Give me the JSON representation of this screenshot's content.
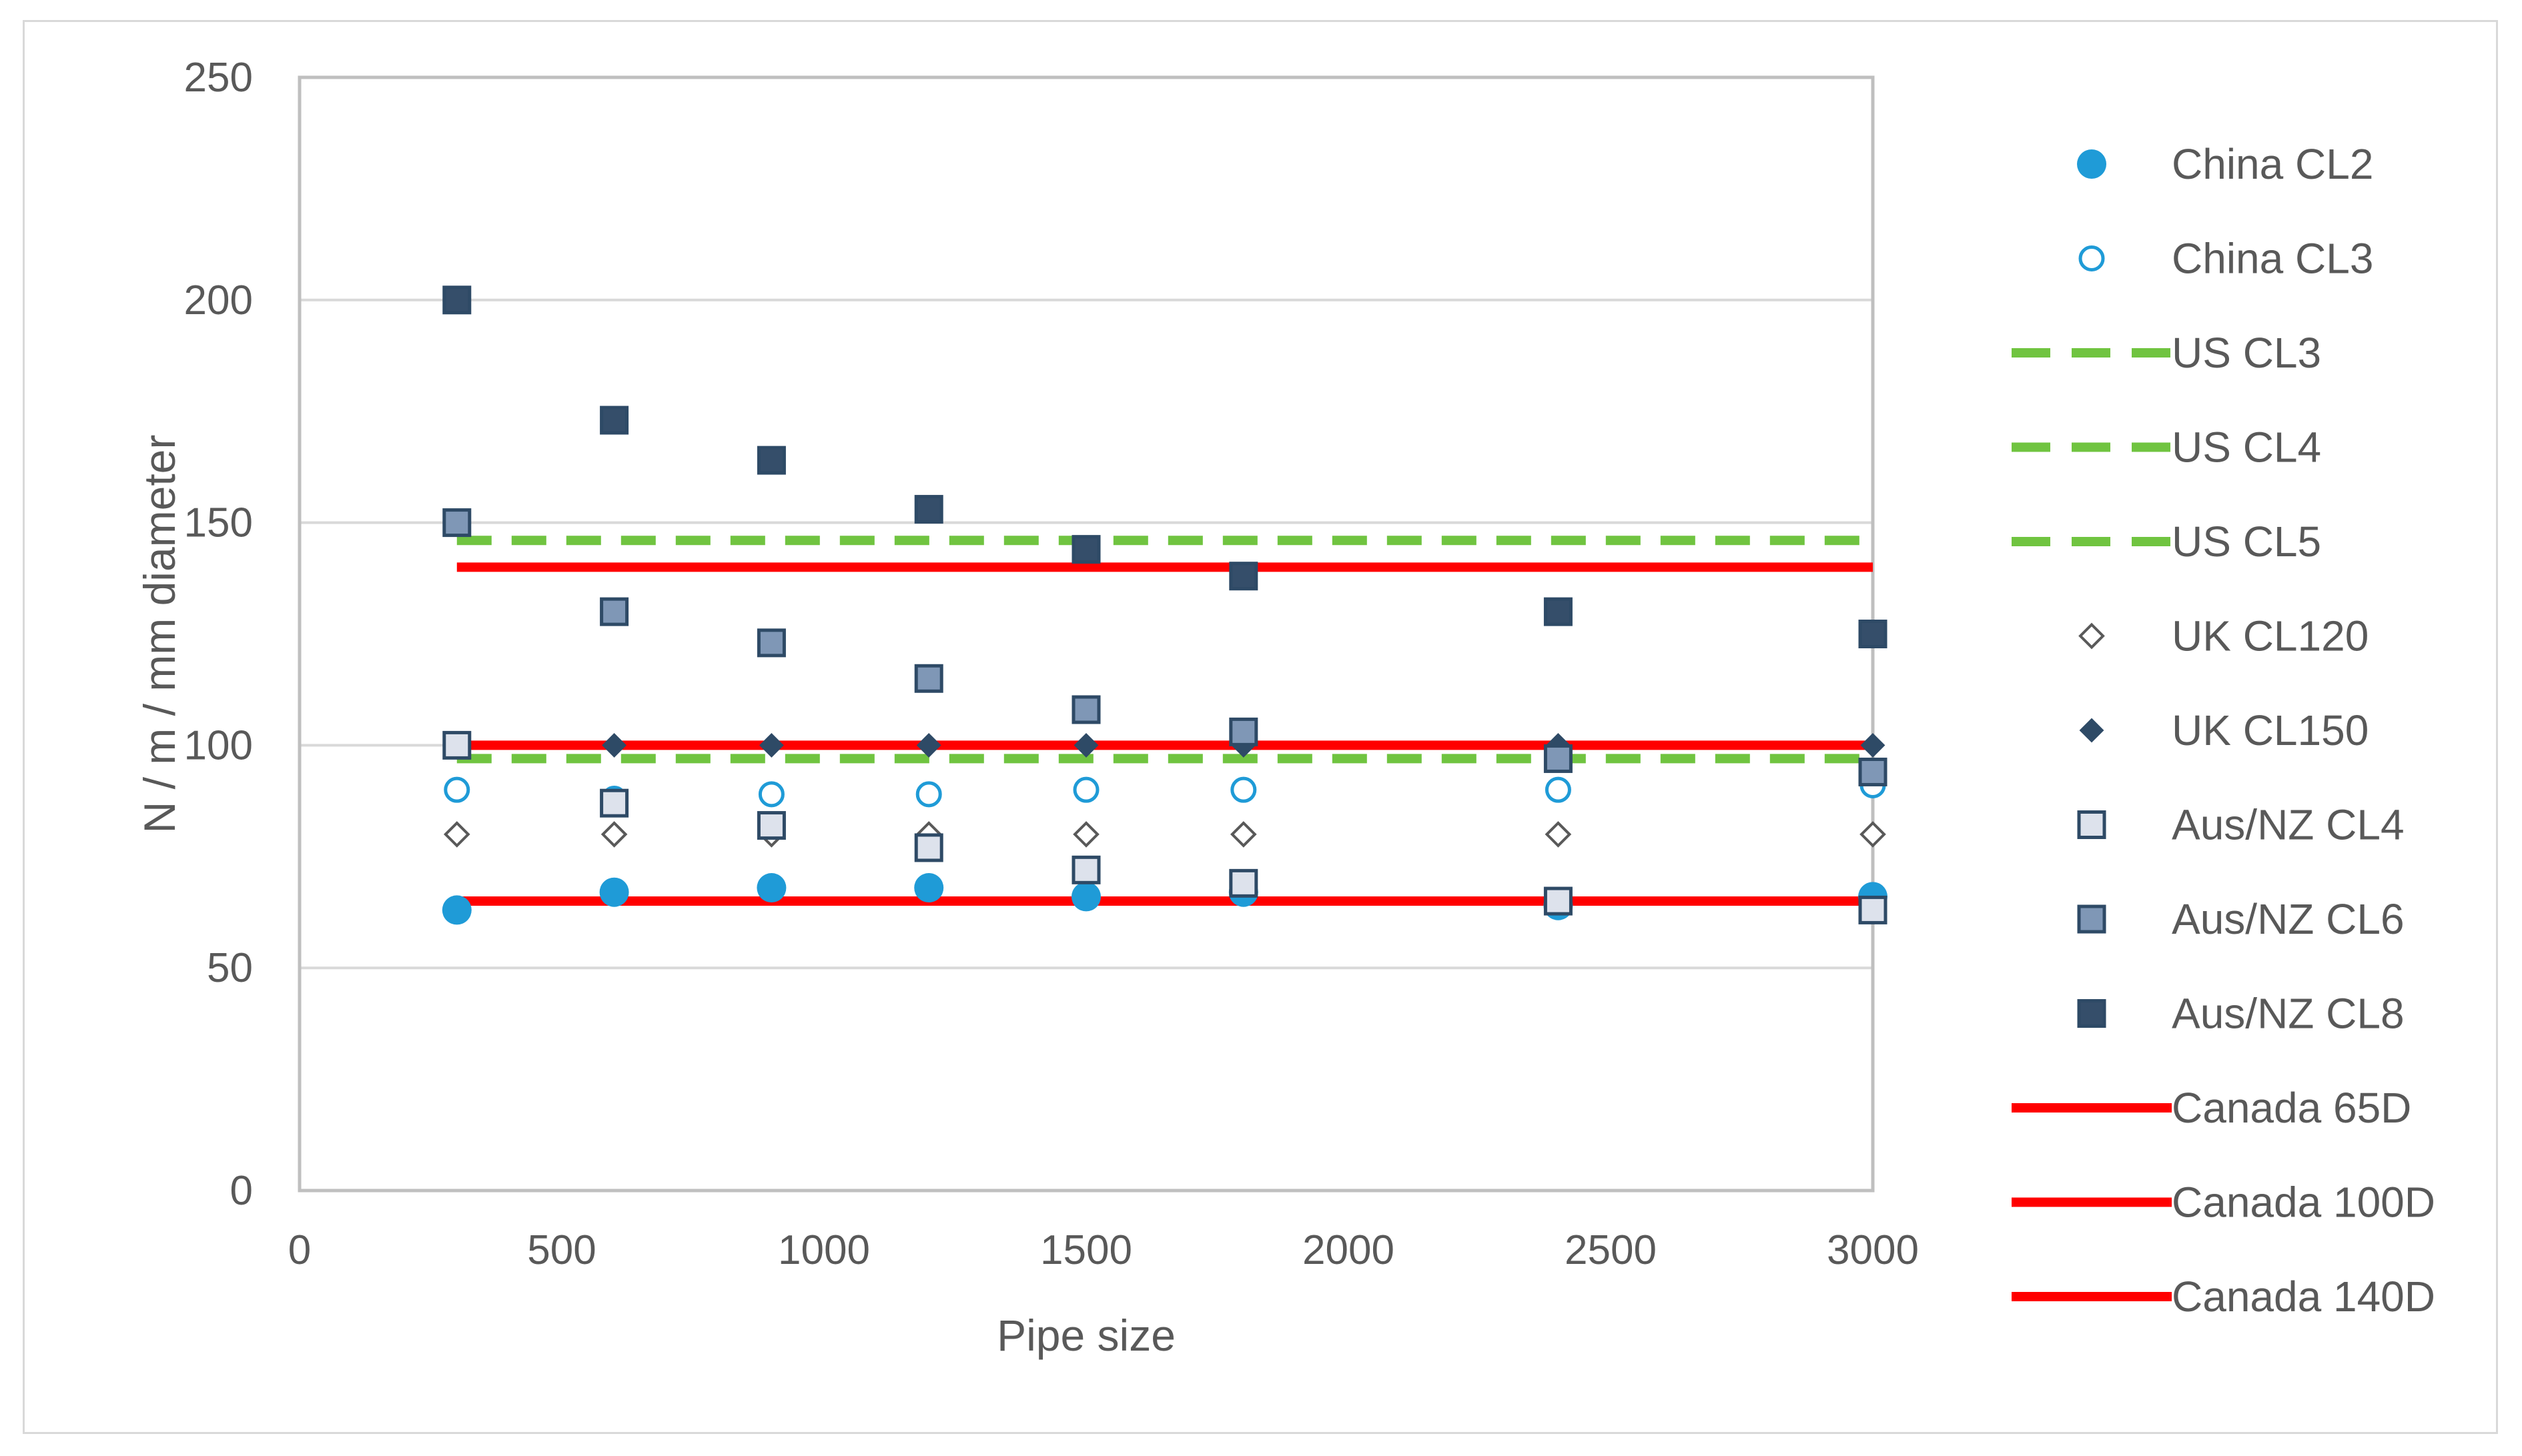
{
  "chart_data": {
    "type": "scatter",
    "title": "",
    "xlabel": "Pipe size",
    "ylabel": "N / m / mm diameter",
    "xlim": [
      0,
      3000
    ],
    "ylim": [
      0,
      250
    ],
    "x_ticks": [
      0,
      500,
      1000,
      1500,
      2000,
      2500,
      3000
    ],
    "y_ticks": [
      0,
      50,
      100,
      150,
      200,
      250
    ],
    "x_tick_labels": [
      "0",
      "500",
      "1000",
      "1500",
      "2000",
      "2500",
      "3000"
    ],
    "y_tick_labels": [
      "0",
      "50",
      "100",
      "150",
      "200",
      "250"
    ],
    "grid": "horizontal",
    "legend_position": "right",
    "series": [
      {
        "name": "China CL2",
        "style": "filled-circle",
        "color": "#1f9bd7",
        "x": [
          300,
          600,
          900,
          1200,
          1500,
          1800,
          2400,
          3000
        ],
        "y": [
          63,
          67,
          68,
          68,
          66,
          67,
          64,
          66
        ]
      },
      {
        "name": "China CL3",
        "style": "open-circle",
        "color": "#1f9bd7",
        "x": [
          300,
          600,
          900,
          1200,
          1500,
          1800,
          2400,
          3000
        ],
        "y": [
          90,
          88,
          89,
          89,
          90,
          90,
          90,
          91
        ]
      },
      {
        "name": "US CL3",
        "style": "dashed-line",
        "color": "#70c440",
        "x": [
          300,
          3000
        ],
        "y": [
          65,
          65
        ]
      },
      {
        "name": "US CL4",
        "style": "dashed-line",
        "color": "#70c440",
        "x": [
          300,
          3000
        ],
        "y": [
          97,
          97
        ]
      },
      {
        "name": "US CL5",
        "style": "dashed-line",
        "color": "#70c440",
        "x": [
          300,
          3000
        ],
        "y": [
          146,
          146
        ]
      },
      {
        "name": "UK CL120",
        "style": "open-diamond",
        "color": "#595959",
        "x": [
          300,
          600,
          900,
          1200,
          1500,
          1800,
          2400,
          3000
        ],
        "y": [
          80,
          80,
          80,
          80,
          80,
          80,
          80,
          80
        ]
      },
      {
        "name": "UK CL150",
        "style": "filled-diamond",
        "color": "#2e4a66",
        "x": [
          300,
          600,
          900,
          1200,
          1500,
          1800,
          2400,
          3000
        ],
        "y": [
          100,
          100,
          100,
          100,
          100,
          100,
          100,
          100
        ]
      },
      {
        "name": "Aus/NZ CL4",
        "style": "square-light",
        "color": "#dde2ec",
        "x": [
          300,
          600,
          900,
          1200,
          1500,
          1800,
          2400,
          3000
        ],
        "y": [
          100,
          87,
          82,
          77,
          72,
          69,
          65,
          63
        ]
      },
      {
        "name": "Aus/NZ CL6",
        "style": "square-mid",
        "color": "#7f97b6",
        "x": [
          300,
          600,
          900,
          1200,
          1500,
          1800,
          2400,
          3000
        ],
        "y": [
          150,
          130,
          123,
          115,
          108,
          103,
          97,
          94
        ]
      },
      {
        "name": "Aus/NZ CL8",
        "style": "square-dark",
        "color": "#354e6a",
        "x": [
          300,
          600,
          900,
          1200,
          1500,
          1800,
          2400,
          3000
        ],
        "y": [
          200,
          173,
          164,
          153,
          144,
          138,
          130,
          125
        ]
      },
      {
        "name": "Canada 65D",
        "style": "solid-line",
        "color": "#ff0000",
        "x": [
          300,
          3000
        ],
        "y": [
          65,
          65
        ]
      },
      {
        "name": "Canada 100D",
        "style": "solid-line",
        "color": "#ff0000",
        "x": [
          300,
          3000
        ],
        "y": [
          100,
          100
        ]
      },
      {
        "name": "Canada 140D",
        "style": "solid-line",
        "color": "#ff0000",
        "x": [
          300,
          3000
        ],
        "y": [
          140,
          140
        ]
      }
    ]
  }
}
